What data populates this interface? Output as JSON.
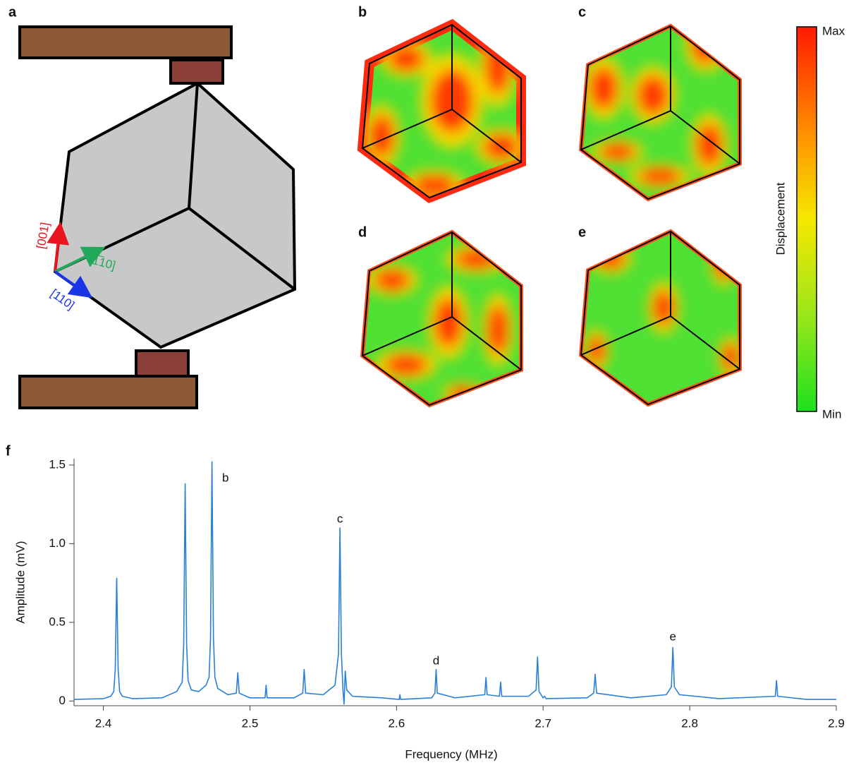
{
  "panel_labels": [
    "a",
    "b",
    "c",
    "d",
    "e",
    "f"
  ],
  "illustration": {
    "axis_labels": [
      "[001]",
      "[1̅10]",
      "[110]"
    ],
    "colorbar": {
      "max": "Max",
      "min": "Min",
      "label": "Displacement"
    }
  },
  "chart_data": {
    "type": "line",
    "xlabel": "Frequency (MHz)",
    "ylabel": "Amplitude (mV)",
    "color": "#2a7fd6",
    "x": [
      2.38,
      2.4,
      2.405,
      2.4071,
      2.4081,
      2.4091,
      2.4101,
      2.4111,
      2.413,
      2.42,
      2.44,
      2.45,
      2.4538,
      2.4548,
      2.4558,
      2.4568,
      2.4578,
      2.46,
      2.465,
      2.47,
      2.4721,
      2.4731,
      2.4741,
      2.4751,
      2.4761,
      2.478,
      2.485,
      2.4907,
      2.4917,
      2.4927,
      2.5,
      2.5103,
      2.511,
      2.5117,
      2.53,
      2.536,
      2.537,
      2.538,
      2.55,
      2.558,
      2.5604,
      2.5614,
      2.5624,
      2.5635,
      2.5642,
      2.565,
      2.566,
      2.57,
      2.59,
      2.6018,
      2.6023,
      2.6028,
      2.624,
      2.6262,
      2.627,
      2.6278,
      2.64,
      2.6602,
      2.661,
      2.6618,
      2.6702,
      2.671,
      2.6718,
      2.69,
      2.6952,
      2.6962,
      2.6972,
      2.7,
      2.701,
      2.702,
      2.73,
      2.7345,
      2.7355,
      2.7365,
      2.76,
      2.784,
      2.7875,
      2.7885,
      2.7895,
      2.793,
      2.82,
      2.8584,
      2.8592,
      2.86,
      2.88,
      2.9
    ],
    "values": [
      0.01,
      0.015,
      0.03,
      0.06,
      0.2,
      0.78,
      0.2,
      0.06,
      0.03,
      0.015,
      0.02,
      0.06,
      0.12,
      0.36,
      1.38,
      0.36,
      0.13,
      0.07,
      0.06,
      0.1,
      0.15,
      0.4,
      1.52,
      0.4,
      0.15,
      0.08,
      0.04,
      0.05,
      0.18,
      0.05,
      0.02,
      0.02,
      0.1,
      0.02,
      0.02,
      0.05,
      0.2,
      0.05,
      0.04,
      0.1,
      0.3,
      1.1,
      0.3,
      0.06,
      -0.02,
      0.19,
      0.07,
      0.03,
      0.02,
      0.01,
      0.04,
      0.01,
      0.02,
      0.05,
      0.2,
      0.05,
      0.02,
      0.04,
      0.15,
      0.04,
      0.03,
      0.12,
      0.03,
      0.03,
      0.07,
      0.28,
      0.06,
      0.02,
      0.03,
      0.015,
      0.02,
      0.05,
      0.17,
      0.05,
      0.02,
      0.04,
      0.09,
      0.34,
      0.09,
      0.04,
      0.015,
      0.03,
      0.13,
      0.03,
      0.01,
      0.01
    ],
    "xlim": [
      2.38,
      2.9
    ],
    "ylim": [
      -0.03,
      1.54
    ],
    "xticks": [
      2.4,
      2.5,
      2.6,
      2.7,
      2.8,
      2.9
    ],
    "yticks": [
      0,
      0.5,
      {
        "value": 1,
        "label": "1.0"
      },
      1.5
    ],
    "annotations": [
      {
        "text": "b",
        "x": 2.4833,
        "y": 1.414
      },
      {
        "text": "c",
        "x": 2.5614,
        "y": 1.154
      },
      {
        "text": "d",
        "x": 2.627,
        "y": 0.253
      },
      {
        "text": "e",
        "x": 2.7885,
        "y": 0.405
      }
    ]
  }
}
